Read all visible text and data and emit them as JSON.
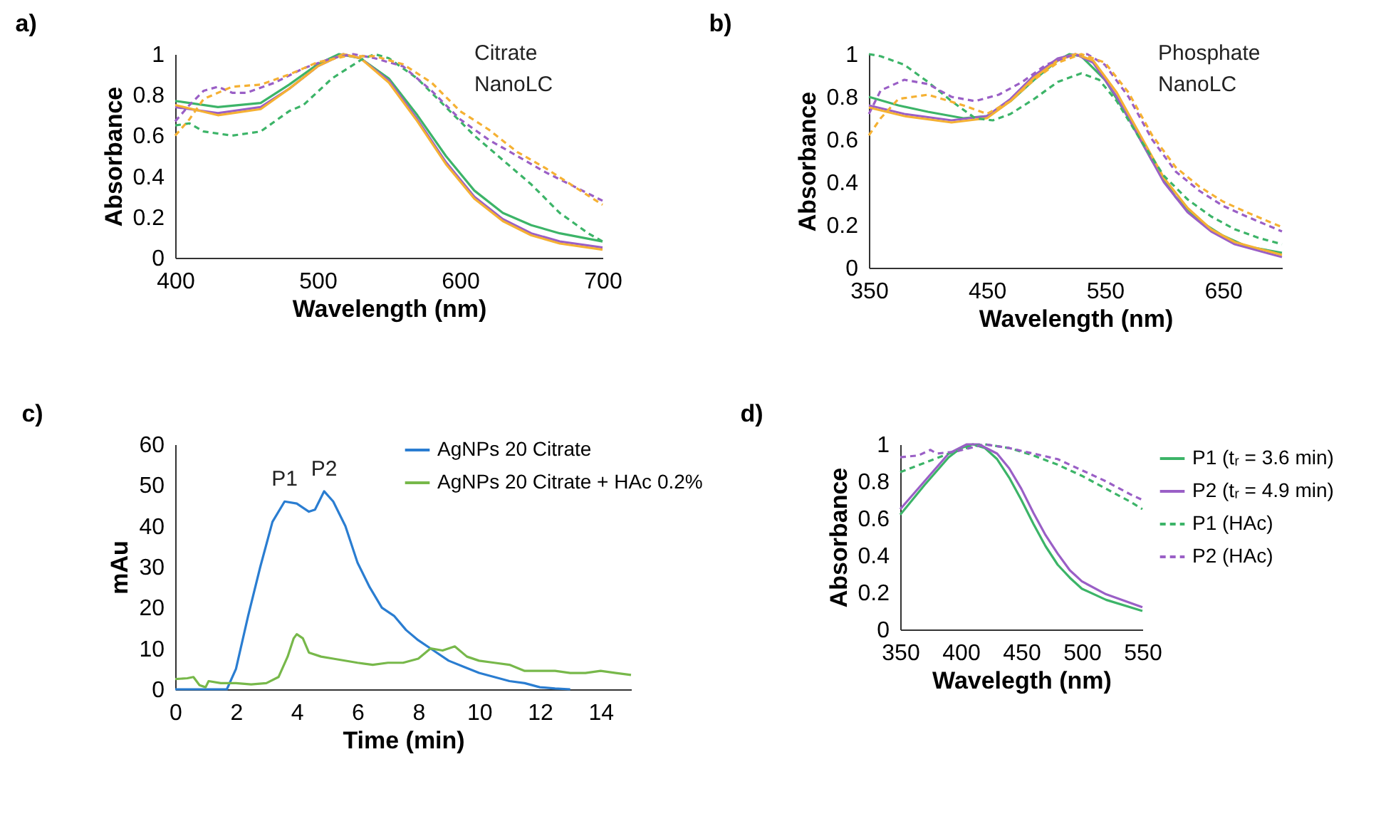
{
  "chart_data": [
    {
      "type": "line",
      "title": "a)",
      "xlabel": "Wavelength (nm)",
      "ylabel": "Absorbance",
      "annotations": [
        "Citrate",
        "NanoLC"
      ],
      "xlim": [
        400,
        700
      ],
      "xticks": [
        400,
        500,
        600,
        700
      ],
      "ylim": [
        0,
        1
      ],
      "yticks": [
        0,
        {
          "value": 0.2,
          "label": "0.2"
        },
        {
          "value": 0.4,
          "label": "0.4"
        },
        {
          "value": 0.6,
          "label": "0.6"
        },
        {
          "value": 0.8,
          "label": "0.8"
        },
        1
      ],
      "grid": false,
      "series": [
        {
          "color": "#3cb468",
          "line_style": "solid",
          "x": [
            400,
            430,
            460,
            480,
            500,
            515,
            530,
            550,
            570,
            590,
            610,
            630,
            650,
            670,
            700
          ],
          "values": [
            0.77,
            0.74,
            0.76,
            0.85,
            0.95,
            1.0,
            0.98,
            0.88,
            0.7,
            0.5,
            0.33,
            0.22,
            0.16,
            0.12,
            0.08
          ]
        },
        {
          "color": "#9a5fc6",
          "line_style": "solid",
          "x": [
            400,
            430,
            460,
            480,
            500,
            518,
            530,
            550,
            570,
            590,
            610,
            630,
            650,
            670,
            700
          ],
          "values": [
            0.74,
            0.71,
            0.74,
            0.83,
            0.94,
            1.0,
            0.98,
            0.87,
            0.68,
            0.47,
            0.3,
            0.19,
            0.12,
            0.08,
            0.05
          ]
        },
        {
          "color": "#f5b133",
          "line_style": "solid",
          "x": [
            400,
            430,
            460,
            480,
            500,
            518,
            530,
            550,
            570,
            590,
            610,
            630,
            650,
            670,
            700
          ],
          "values": [
            0.75,
            0.7,
            0.73,
            0.83,
            0.94,
            1.0,
            0.98,
            0.86,
            0.67,
            0.46,
            0.29,
            0.18,
            0.11,
            0.07,
            0.04
          ]
        },
        {
          "color": "#3cb468",
          "line_style": "dashed",
          "x": [
            400,
            410,
            420,
            440,
            460,
            480,
            490,
            510,
            530,
            540,
            550,
            570,
            590,
            610,
            630,
            650,
            670,
            690,
            700
          ],
          "values": [
            0.65,
            0.66,
            0.62,
            0.6,
            0.62,
            0.72,
            0.75,
            0.88,
            0.97,
            1.0,
            0.98,
            0.88,
            0.74,
            0.6,
            0.48,
            0.36,
            0.22,
            0.12,
            0.08
          ]
        },
        {
          "color": "#9a5fc6",
          "line_style": "dashed",
          "x": [
            400,
            410,
            420,
            430,
            440,
            450,
            470,
            490,
            510,
            525,
            540,
            560,
            580,
            600,
            620,
            640,
            660,
            680,
            700
          ],
          "values": [
            0.67,
            0.75,
            0.82,
            0.84,
            0.81,
            0.81,
            0.86,
            0.93,
            0.98,
            1.0,
            0.98,
            0.94,
            0.82,
            0.68,
            0.58,
            0.5,
            0.42,
            0.35,
            0.28
          ]
        },
        {
          "color": "#f5b133",
          "line_style": "dashed",
          "x": [
            400,
            410,
            420,
            440,
            460,
            480,
            500,
            520,
            540,
            560,
            580,
            600,
            620,
            640,
            660,
            680,
            700
          ],
          "values": [
            0.6,
            0.68,
            0.78,
            0.84,
            0.85,
            0.9,
            0.96,
            0.99,
            0.99,
            0.95,
            0.86,
            0.72,
            0.63,
            0.52,
            0.44,
            0.35,
            0.26
          ]
        }
      ]
    },
    {
      "type": "line",
      "title": "b)",
      "xlabel": "Wavelength (nm)",
      "ylabel": "Absorbance",
      "annotations": [
        "Phosphate",
        "NanoLC"
      ],
      "xlim": [
        350,
        700
      ],
      "xticks": [
        350,
        450,
        550,
        650
      ],
      "ylim": [
        0,
        1
      ],
      "yticks": [
        0,
        {
          "value": 0.2,
          "label": "0.2"
        },
        {
          "value": 0.4,
          "label": "0.4"
        },
        {
          "value": 0.6,
          "label": "0.6"
        },
        {
          "value": 0.8,
          "label": "0.8"
        },
        1
      ],
      "grid": false,
      "series": [
        {
          "color": "#3cb468",
          "line_style": "solid",
          "x": [
            350,
            375,
            400,
            430,
            450,
            470,
            490,
            510,
            520,
            530,
            550,
            570,
            590,
            610,
            630,
            650,
            670,
            700
          ],
          "values": [
            0.8,
            0.76,
            0.73,
            0.7,
            0.71,
            0.78,
            0.88,
            0.97,
            1.0,
            0.99,
            0.88,
            0.7,
            0.5,
            0.33,
            0.22,
            0.15,
            0.1,
            0.07
          ]
        },
        {
          "color": "#9a5fc6",
          "line_style": "solid",
          "x": [
            350,
            380,
            420,
            450,
            470,
            490,
            510,
            525,
            540,
            560,
            580,
            600,
            620,
            640,
            660,
            700
          ],
          "values": [
            0.76,
            0.72,
            0.69,
            0.71,
            0.79,
            0.9,
            0.98,
            1.0,
            0.96,
            0.8,
            0.6,
            0.4,
            0.26,
            0.17,
            0.11,
            0.05
          ]
        },
        {
          "color": "#f5b133",
          "line_style": "solid",
          "x": [
            350,
            380,
            420,
            450,
            470,
            490,
            510,
            525,
            540,
            560,
            580,
            600,
            620,
            640,
            660,
            700
          ],
          "values": [
            0.75,
            0.71,
            0.68,
            0.7,
            0.78,
            0.89,
            0.97,
            1.0,
            0.97,
            0.82,
            0.62,
            0.42,
            0.28,
            0.18,
            0.12,
            0.06
          ]
        },
        {
          "color": "#3cb468",
          "line_style": "dashed",
          "x": [
            350,
            360,
            380,
            400,
            420,
            440,
            455,
            470,
            490,
            510,
            530,
            545,
            560,
            580,
            600,
            620,
            640,
            660,
            680,
            700
          ],
          "values": [
            1.0,
            0.99,
            0.95,
            0.87,
            0.78,
            0.7,
            0.69,
            0.72,
            0.79,
            0.87,
            0.91,
            0.88,
            0.78,
            0.6,
            0.43,
            0.32,
            0.24,
            0.18,
            0.14,
            0.11
          ]
        },
        {
          "color": "#9a5fc6",
          "line_style": "dashed",
          "x": [
            350,
            360,
            380,
            400,
            420,
            440,
            460,
            480,
            500,
            520,
            535,
            550,
            570,
            590,
            610,
            630,
            650,
            670,
            700
          ],
          "values": [
            0.72,
            0.83,
            0.88,
            0.86,
            0.8,
            0.78,
            0.81,
            0.87,
            0.95,
            0.99,
            1.0,
            0.95,
            0.8,
            0.6,
            0.45,
            0.36,
            0.29,
            0.24,
            0.17
          ]
        },
        {
          "color": "#f5b133",
          "line_style": "dashed",
          "x": [
            350,
            360,
            375,
            400,
            430,
            450,
            470,
            490,
            510,
            530,
            550,
            570,
            590,
            610,
            630,
            650,
            670,
            700
          ],
          "values": [
            0.62,
            0.7,
            0.79,
            0.81,
            0.76,
            0.72,
            0.78,
            0.88,
            0.96,
            1.0,
            0.96,
            0.82,
            0.62,
            0.47,
            0.38,
            0.31,
            0.26,
            0.19
          ]
        }
      ]
    },
    {
      "type": "line",
      "title": "c)",
      "xlabel": "Time (min)",
      "ylabel": "mAu",
      "annotations": [
        {
          "text": "P1",
          "x": 3.6,
          "y": 46
        },
        {
          "text": "P2",
          "x": 4.9,
          "y": 48.5
        }
      ],
      "xlim": [
        0,
        15
      ],
      "xticks": [
        0,
        2,
        4,
        6,
        8,
        10,
        12,
        14
      ],
      "ylim": [
        0,
        60
      ],
      "yticks": [
        0,
        10,
        20,
        30,
        40,
        50,
        60
      ],
      "grid": false,
      "legend": "top right",
      "series": [
        {
          "name": "AgNPs 20 Citrate",
          "color": "#2a7dd1",
          "line_style": "solid",
          "x": [
            0,
            1.7,
            2.0,
            2.4,
            2.8,
            3.2,
            3.6,
            4.0,
            4.4,
            4.6,
            4.9,
            5.2,
            5.6,
            6.0,
            6.4,
            6.8,
            7.2,
            7.6,
            8.0,
            8.5,
            9.0,
            9.5,
            10,
            10.5,
            11,
            11.5,
            12,
            12.5,
            13
          ],
          "values": [
            0,
            0,
            5,
            18,
            30,
            41,
            46,
            45.5,
            43.5,
            44,
            48.5,
            46,
            40,
            31,
            25,
            20,
            18,
            14.5,
            12,
            9.5,
            7,
            5.5,
            4,
            3,
            2,
            1.5,
            0.5,
            0.2,
            0
          ]
        },
        {
          "name": "AgNPs 20 Citrate + HAc 0.2%",
          "color": "#77b84a",
          "line_style": "solid",
          "x": [
            0,
            0.4,
            0.6,
            0.8,
            1.0,
            1.1,
            1.5,
            2,
            2.5,
            3.0,
            3.4,
            3.7,
            3.9,
            4.0,
            4.2,
            4.4,
            4.8,
            5.2,
            6.0,
            6.5,
            7.0,
            7.5,
            8.0,
            8.4,
            8.8,
            9.2,
            9.6,
            10.0,
            10.5,
            11.0,
            11.5,
            12,
            12.5,
            13,
            13.5,
            14,
            14.5,
            15
          ],
          "values": [
            2.5,
            2.7,
            3,
            1,
            0.5,
            2,
            1.5,
            1.5,
            1.2,
            1.5,
            3,
            8,
            12.5,
            13.5,
            12.5,
            9,
            8,
            7.5,
            6.5,
            6,
            6.5,
            6.5,
            7.5,
            10,
            9.5,
            10.5,
            8,
            7,
            6.5,
            6,
            4.5,
            4.5,
            4.5,
            4,
            4,
            4.5,
            4,
            3.5
          ]
        }
      ]
    },
    {
      "type": "line",
      "title": "d)",
      "xlabel": "Wavelegth (nm)",
      "ylabel": "Absorbance",
      "xlim": [
        350,
        550
      ],
      "xticks": [
        350,
        400,
        450,
        500,
        550
      ],
      "ylim": [
        0,
        1
      ],
      "yticks": [
        0,
        {
          "value": 0.2,
          "label": "0.2"
        },
        {
          "value": 0.4,
          "label": "0.4"
        },
        {
          "value": 0.6,
          "label": "0.6"
        },
        {
          "value": 0.8,
          "label": "0.8"
        },
        1
      ],
      "grid": false,
      "legend": "right",
      "series": [
        {
          "name": "P1 (tᵣ = 3.6 min)",
          "color": "#3cb468",
          "line_style": "solid",
          "x": [
            350,
            370,
            390,
            400,
            410,
            420,
            430,
            440,
            450,
            460,
            470,
            480,
            490,
            500,
            520,
            550
          ],
          "values": [
            0.62,
            0.78,
            0.93,
            0.98,
            1.0,
            0.98,
            0.92,
            0.82,
            0.7,
            0.57,
            0.45,
            0.35,
            0.28,
            0.22,
            0.16,
            0.1
          ]
        },
        {
          "name": "P2 (tᵣ = 4.9 min)",
          "color": "#9a5fc6",
          "line_style": "solid",
          "x": [
            350,
            370,
            390,
            405,
            415,
            430,
            440,
            450,
            460,
            470,
            480,
            490,
            500,
            520,
            550
          ],
          "values": [
            0.65,
            0.8,
            0.95,
            1.0,
            1.0,
            0.95,
            0.87,
            0.76,
            0.63,
            0.51,
            0.41,
            0.32,
            0.26,
            0.19,
            0.12
          ]
        },
        {
          "name": "P1 (HAc)",
          "color": "#3cb468",
          "line_style": "dashed",
          "x": [
            350,
            370,
            390,
            410,
            420,
            440,
            460,
            480,
            500,
            520,
            540,
            550
          ],
          "values": [
            0.85,
            0.9,
            0.95,
            0.99,
            1.0,
            0.98,
            0.94,
            0.89,
            0.83,
            0.76,
            0.69,
            0.65
          ]
        },
        {
          "name": "P2 (HAc)",
          "color": "#9a5fc6",
          "line_style": "dashed",
          "x": [
            350,
            365,
            375,
            380,
            395,
            420,
            440,
            460,
            480,
            500,
            520,
            540,
            550
          ],
          "values": [
            0.93,
            0.94,
            0.97,
            0.95,
            0.96,
            1.0,
            0.98,
            0.95,
            0.92,
            0.86,
            0.8,
            0.73,
            0.7
          ]
        }
      ]
    }
  ]
}
